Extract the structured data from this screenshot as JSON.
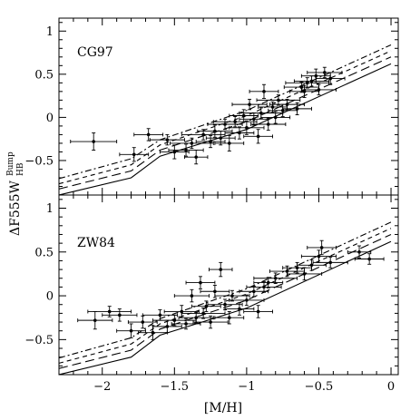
{
  "chart_data": {
    "type": "scatter",
    "xlabel": "[M/H]",
    "ylabel_main": "ΔF555W",
    "ylabel_sup": "Bump",
    "ylabel_sub": "HB",
    "xlim": [
      -2.3,
      0.05
    ],
    "ylim": [
      -0.9,
      1.15
    ],
    "x_ticks": [
      -2,
      -1.5,
      -1,
      -0.5,
      0
    ],
    "x_tick_labels": [
      "−2",
      "−1.5",
      "−1",
      "−0.5",
      "0"
    ],
    "y_ticks": [
      -0.5,
      0,
      0.5,
      1
    ],
    "y_tick_labels": [
      "−0.5",
      "0",
      "0.5",
      "1"
    ],
    "panels": [
      {
        "label": "CG97",
        "models": [
          {
            "style": "solid",
            "points": [
              [
                -2.3,
                -0.9
              ],
              [
                -1.8,
                -0.7
              ],
              [
                -1.6,
                -0.45
              ],
              [
                -1.0,
                -0.14
              ],
              [
                0.0,
                0.62
              ]
            ]
          },
          {
            "style": "long-dash",
            "points": [
              [
                -2.3,
                -0.83
              ],
              [
                -1.8,
                -0.62
              ],
              [
                -1.6,
                -0.38
              ],
              [
                -1.0,
                -0.05
              ],
              [
                0.0,
                0.7
              ]
            ]
          },
          {
            "style": "short-dash",
            "points": [
              [
                -2.3,
                -0.77
              ],
              [
                -1.8,
                -0.55
              ],
              [
                -1.6,
                -0.32
              ],
              [
                -1.0,
                0.02
              ],
              [
                0.0,
                0.77
              ]
            ]
          },
          {
            "style": "dot-dash",
            "points": [
              [
                -2.3,
                -0.71
              ],
              [
                -1.8,
                -0.48
              ],
              [
                -1.6,
                -0.26
              ],
              [
                -1.0,
                0.08
              ],
              [
                0.0,
                0.84
              ]
            ]
          }
        ],
        "points": [
          {
            "x": -2.06,
            "y": -0.28,
            "ex": 0.16,
            "ey": 0.1
          },
          {
            "x": -1.78,
            "y": -0.43,
            "ex": 0.1,
            "ey": 0.08
          },
          {
            "x": -1.68,
            "y": -0.2,
            "ex": 0.1,
            "ey": 0.07
          },
          {
            "x": -1.55,
            "y": -0.26,
            "ex": 0.12,
            "ey": 0.06
          },
          {
            "x": -1.5,
            "y": -0.4,
            "ex": 0.1,
            "ey": 0.08
          },
          {
            "x": -1.42,
            "y": -0.38,
            "ex": 0.12,
            "ey": 0.07
          },
          {
            "x": -1.38,
            "y": -0.3,
            "ex": 0.15,
            "ey": 0.06
          },
          {
            "x": -1.35,
            "y": -0.46,
            "ex": 0.08,
            "ey": 0.08
          },
          {
            "x": -1.3,
            "y": -0.2,
            "ex": 0.15,
            "ey": 0.06
          },
          {
            "x": -1.25,
            "y": -0.28,
            "ex": 0.1,
            "ey": 0.07
          },
          {
            "x": -1.22,
            "y": -0.16,
            "ex": 0.12,
            "ey": 0.07
          },
          {
            "x": -1.18,
            "y": -0.24,
            "ex": 0.1,
            "ey": 0.08
          },
          {
            "x": -1.15,
            "y": -0.08,
            "ex": 0.12,
            "ey": 0.06
          },
          {
            "x": -1.12,
            "y": -0.3,
            "ex": 0.1,
            "ey": 0.09
          },
          {
            "x": -1.08,
            "y": -0.05,
            "ex": 0.15,
            "ey": 0.06
          },
          {
            "x": -1.05,
            "y": -0.18,
            "ex": 0.1,
            "ey": 0.07
          },
          {
            "x": -1.02,
            "y": 0.02,
            "ex": 0.1,
            "ey": 0.07
          },
          {
            "x": -1.0,
            "y": -0.12,
            "ex": 0.12,
            "ey": 0.08
          },
          {
            "x": -0.98,
            "y": 0.15,
            "ex": 0.12,
            "ey": 0.06
          },
          {
            "x": -0.95,
            "y": -0.02,
            "ex": 0.1,
            "ey": 0.07
          },
          {
            "x": -0.92,
            "y": -0.22,
            "ex": 0.1,
            "ey": 0.08
          },
          {
            "x": -0.9,
            "y": 0.05,
            "ex": 0.15,
            "ey": 0.06
          },
          {
            "x": -0.88,
            "y": 0.3,
            "ex": 0.1,
            "ey": 0.08
          },
          {
            "x": -0.85,
            "y": -0.08,
            "ex": 0.12,
            "ey": 0.07
          },
          {
            "x": -0.82,
            "y": 0.12,
            "ex": 0.1,
            "ey": 0.06
          },
          {
            "x": -0.8,
            "y": 0.0,
            "ex": 0.1,
            "ey": 0.07
          },
          {
            "x": -0.78,
            "y": 0.2,
            "ex": 0.15,
            "ey": 0.06
          },
          {
            "x": -0.75,
            "y": 0.08,
            "ex": 0.1,
            "ey": 0.07
          },
          {
            "x": -0.72,
            "y": 0.15,
            "ex": 0.12,
            "ey": 0.06
          },
          {
            "x": -0.65,
            "y": 0.1,
            "ex": 0.1,
            "ey": 0.07
          },
          {
            "x": -0.62,
            "y": 0.35,
            "ex": 0.12,
            "ey": 0.06
          },
          {
            "x": -0.6,
            "y": 0.3,
            "ex": 0.1,
            "ey": 0.07
          },
          {
            "x": -0.58,
            "y": 0.4,
            "ex": 0.15,
            "ey": 0.06
          },
          {
            "x": -0.55,
            "y": 0.42,
            "ex": 0.12,
            "ey": 0.06
          },
          {
            "x": -0.52,
            "y": 0.48,
            "ex": 0.1,
            "ey": 0.08
          },
          {
            "x": -0.5,
            "y": 0.32,
            "ex": 0.12,
            "ey": 0.06
          },
          {
            "x": -0.46,
            "y": 0.52,
            "ex": 0.12,
            "ey": 0.06
          },
          {
            "x": -0.42,
            "y": 0.45,
            "ex": 0.1,
            "ey": 0.07
          }
        ]
      },
      {
        "label": "ZW84",
        "models": [
          {
            "style": "solid",
            "points": [
              [
                -2.3,
                -0.9
              ],
              [
                -1.8,
                -0.7
              ],
              [
                -1.6,
                -0.45
              ],
              [
                -1.0,
                -0.14
              ],
              [
                0.0,
                0.62
              ]
            ]
          },
          {
            "style": "long-dash",
            "points": [
              [
                -2.3,
                -0.83
              ],
              [
                -1.8,
                -0.62
              ],
              [
                -1.6,
                -0.38
              ],
              [
                -1.0,
                -0.05
              ],
              [
                0.0,
                0.7
              ]
            ]
          },
          {
            "style": "short-dash",
            "points": [
              [
                -2.3,
                -0.77
              ],
              [
                -1.8,
                -0.55
              ],
              [
                -1.6,
                -0.32
              ],
              [
                -1.0,
                0.02
              ],
              [
                0.0,
                0.77
              ]
            ]
          },
          {
            "style": "dot-dash",
            "points": [
              [
                -2.3,
                -0.71
              ],
              [
                -1.8,
                -0.48
              ],
              [
                -1.6,
                -0.26
              ],
              [
                -1.0,
                0.08
              ],
              [
                0.0,
                0.84
              ]
            ]
          }
        ],
        "points": [
          {
            "x": -2.05,
            "y": -0.28,
            "ex": 0.12,
            "ey": 0.1
          },
          {
            "x": -1.95,
            "y": -0.18,
            "ex": 0.15,
            "ey": 0.06
          },
          {
            "x": -1.88,
            "y": -0.22,
            "ex": 0.12,
            "ey": 0.07
          },
          {
            "x": -1.8,
            "y": -0.4,
            "ex": 0.1,
            "ey": 0.08
          },
          {
            "x": -1.72,
            "y": -0.3,
            "ex": 0.1,
            "ey": 0.07
          },
          {
            "x": -1.65,
            "y": -0.42,
            "ex": 0.1,
            "ey": 0.08
          },
          {
            "x": -1.6,
            "y": -0.22,
            "ex": 0.12,
            "ey": 0.06
          },
          {
            "x": -1.55,
            "y": -0.35,
            "ex": 0.1,
            "ey": 0.07
          },
          {
            "x": -1.5,
            "y": -0.28,
            "ex": 0.15,
            "ey": 0.06
          },
          {
            "x": -1.45,
            "y": -0.18,
            "ex": 0.12,
            "ey": 0.07
          },
          {
            "x": -1.42,
            "y": -0.32,
            "ex": 0.1,
            "ey": 0.06
          },
          {
            "x": -1.38,
            "y": 0.0,
            "ex": 0.12,
            "ey": 0.07
          },
          {
            "x": -1.35,
            "y": -0.25,
            "ex": 0.12,
            "ey": 0.06
          },
          {
            "x": -1.32,
            "y": 0.15,
            "ex": 0.1,
            "ey": 0.07
          },
          {
            "x": -1.3,
            "y": -0.2,
            "ex": 0.15,
            "ey": 0.06
          },
          {
            "x": -1.28,
            "y": -0.12,
            "ex": 0.1,
            "ey": 0.06
          },
          {
            "x": -1.25,
            "y": -0.3,
            "ex": 0.12,
            "ey": 0.07
          },
          {
            "x": -1.22,
            "y": 0.05,
            "ex": 0.1,
            "ey": 0.07
          },
          {
            "x": -1.18,
            "y": 0.3,
            "ex": 0.08,
            "ey": 0.08
          },
          {
            "x": -1.15,
            "y": -0.1,
            "ex": 0.12,
            "ey": 0.06
          },
          {
            "x": -1.12,
            "y": -0.25,
            "ex": 0.1,
            "ey": 0.07
          },
          {
            "x": -1.1,
            "y": 0.0,
            "ex": 0.12,
            "ey": 0.06
          },
          {
            "x": -1.05,
            "y": -0.15,
            "ex": 0.1,
            "ey": 0.07
          },
          {
            "x": -1.0,
            "y": -0.05,
            "ex": 0.12,
            "ey": 0.06
          },
          {
            "x": -0.95,
            "y": 0.05,
            "ex": 0.1,
            "ey": 0.06
          },
          {
            "x": -0.92,
            "y": -0.18,
            "ex": 0.1,
            "ey": 0.07
          },
          {
            "x": -0.88,
            "y": 0.1,
            "ex": 0.12,
            "ey": 0.06
          },
          {
            "x": -0.85,
            "y": 0.15,
            "ex": 0.1,
            "ey": 0.06
          },
          {
            "x": -0.8,
            "y": 0.2,
            "ex": 0.15,
            "ey": 0.06
          },
          {
            "x": -0.72,
            "y": 0.28,
            "ex": 0.12,
            "ey": 0.06
          },
          {
            "x": -0.65,
            "y": 0.32,
            "ex": 0.1,
            "ey": 0.06
          },
          {
            "x": -0.6,
            "y": 0.25,
            "ex": 0.12,
            "ey": 0.07
          },
          {
            "x": -0.55,
            "y": 0.35,
            "ex": 0.1,
            "ey": 0.06
          },
          {
            "x": -0.5,
            "y": 0.45,
            "ex": 0.12,
            "ey": 0.07
          },
          {
            "x": -0.48,
            "y": 0.55,
            "ex": 0.1,
            "ey": 0.08
          },
          {
            "x": -0.42,
            "y": 0.38,
            "ex": 0.12,
            "ey": 0.06
          },
          {
            "x": -0.22,
            "y": 0.5,
            "ex": 0.08,
            "ey": 0.07
          },
          {
            "x": -0.15,
            "y": 0.42,
            "ex": 0.1,
            "ey": 0.06
          }
        ]
      }
    ]
  }
}
